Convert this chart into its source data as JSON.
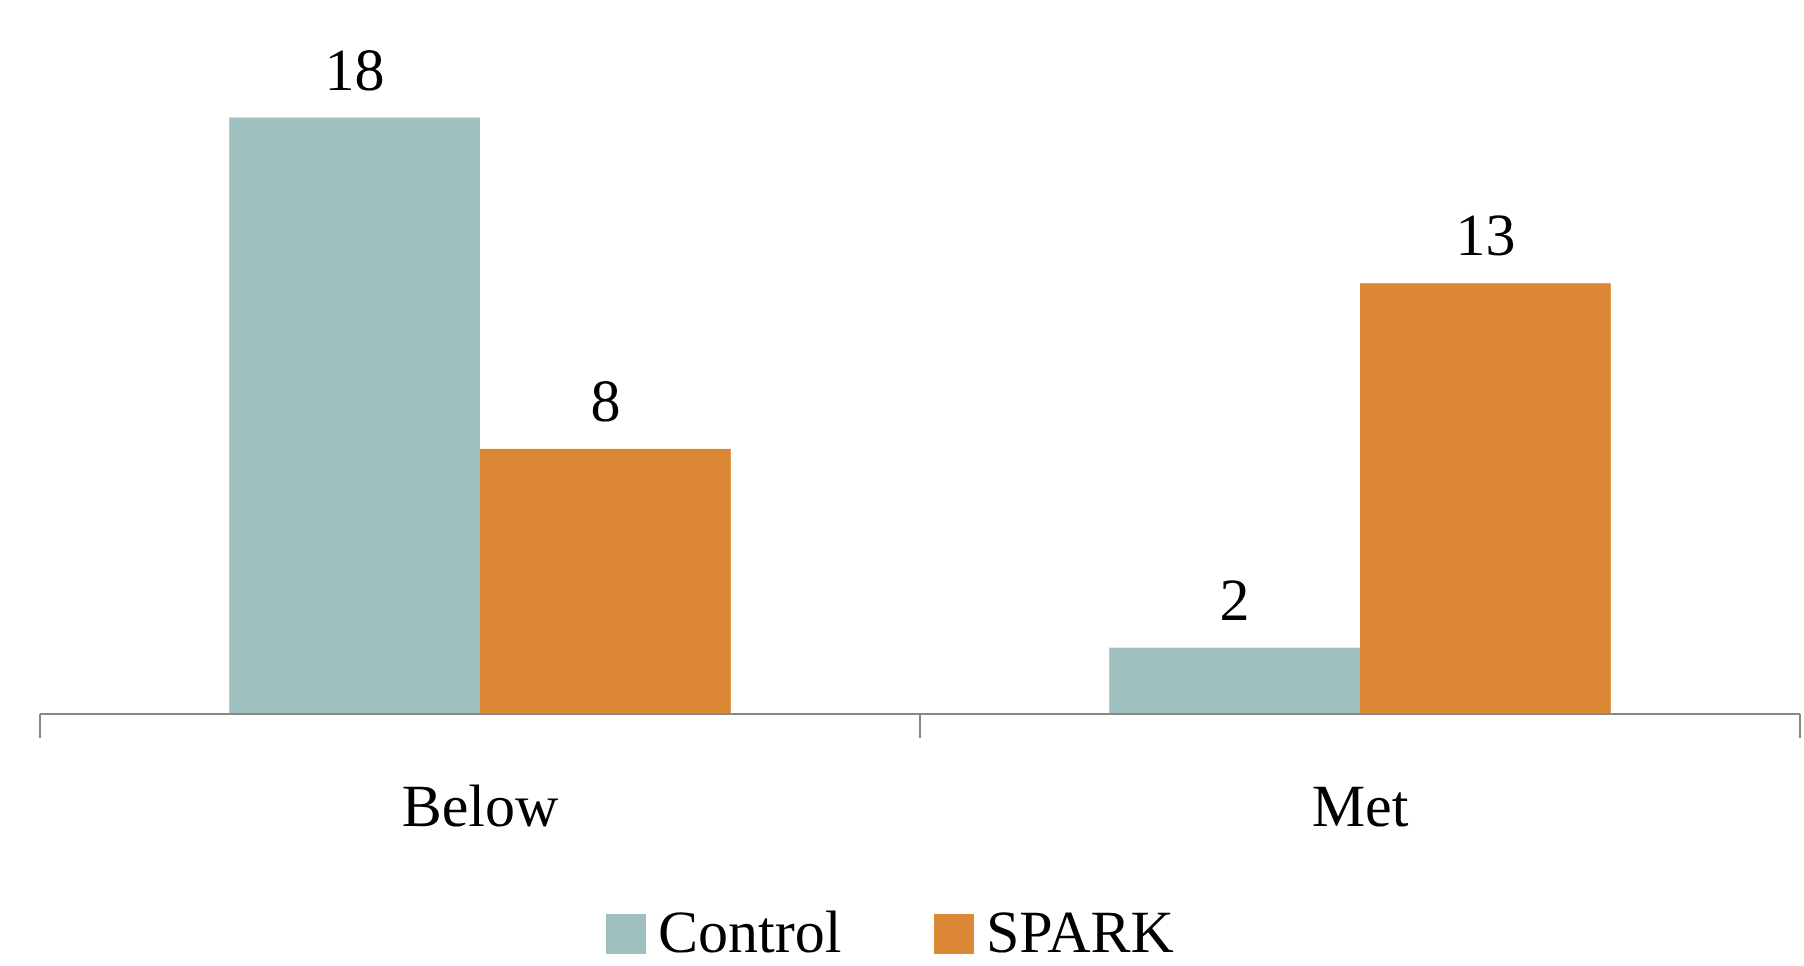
{
  "chart_data": {
    "type": "bar",
    "categories": [
      "Below",
      "Met"
    ],
    "series": [
      {
        "name": "Control",
        "color": "#9fc0bf",
        "values": [
          18,
          2
        ]
      },
      {
        "name": "SPARK",
        "color": "#dc8735",
        "values": [
          8,
          13
        ]
      }
    ],
    "data_labels": true,
    "legend": "bottom"
  }
}
